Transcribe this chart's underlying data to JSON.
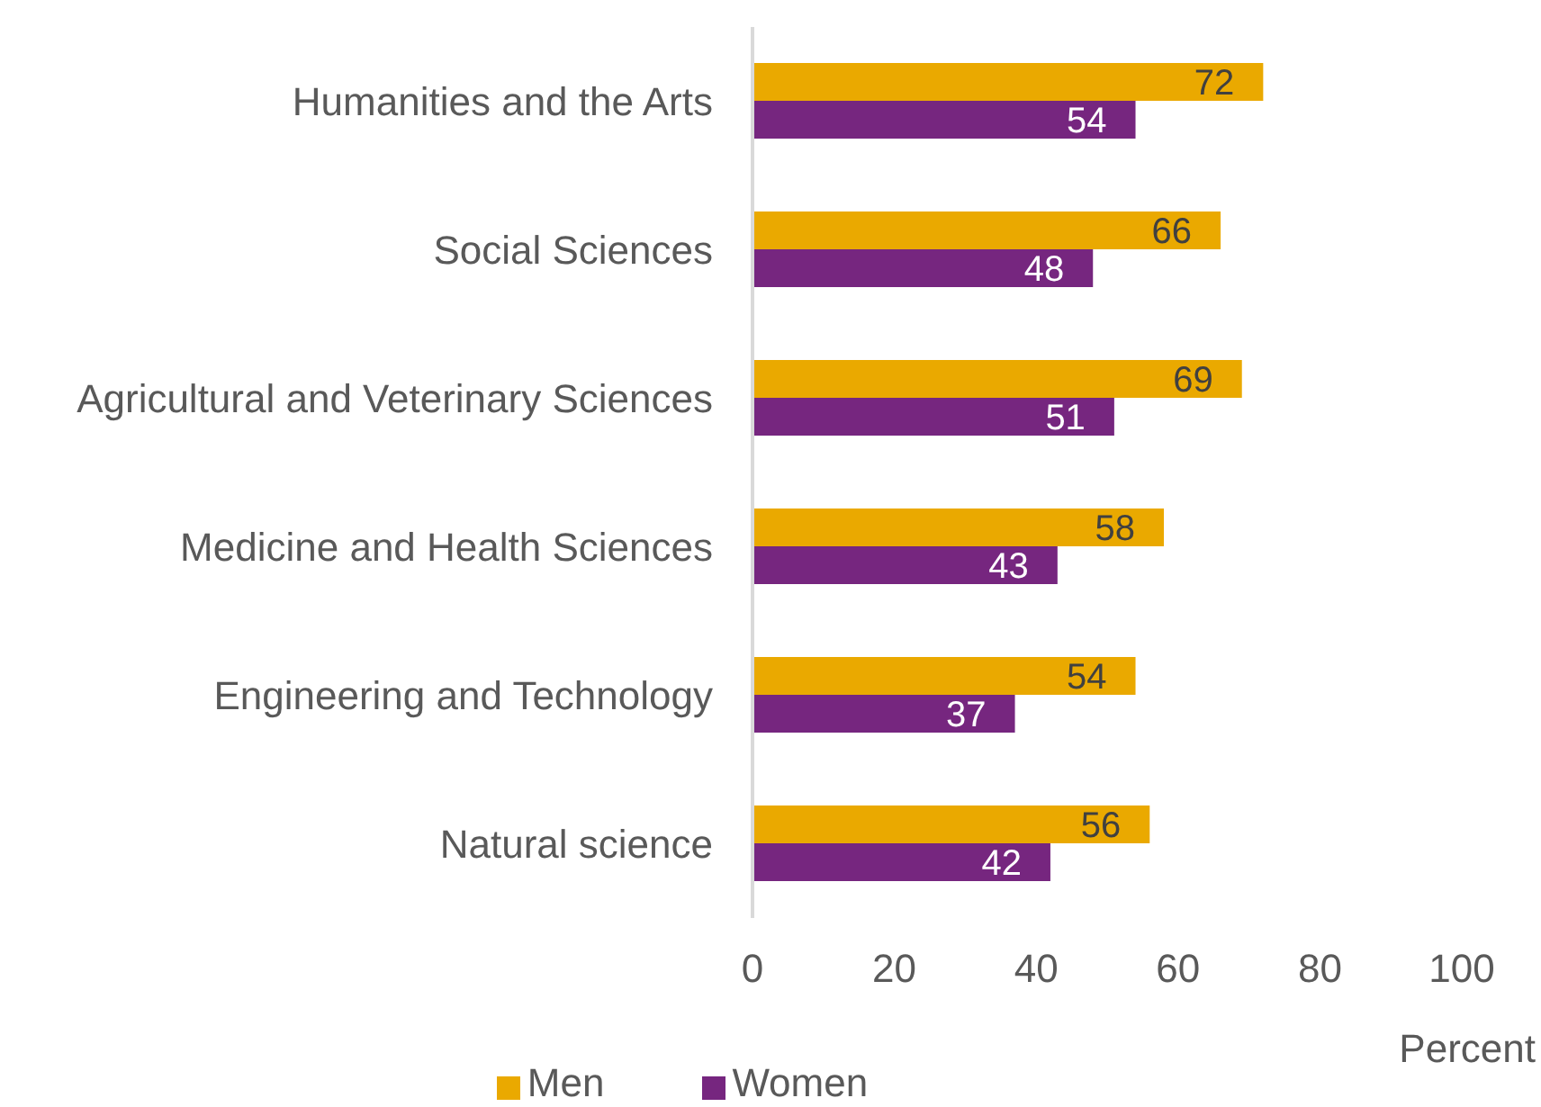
{
  "chart_data": {
    "type": "bar",
    "orientation": "horizontal",
    "categories": [
      "Humanities and the Arts",
      "Social Sciences",
      "Agricultural and Veterinary Sciences",
      "Medicine and Health Sciences",
      "Engineering and Technology",
      "Natural science"
    ],
    "series": [
      {
        "name": "Men",
        "color": "#eaa900",
        "values": [
          72,
          66,
          69,
          58,
          54,
          56
        ]
      },
      {
        "name": "Women",
        "color": "#76267f",
        "values": [
          54,
          48,
          51,
          43,
          37,
          42
        ]
      }
    ],
    "xlabel": "Percent",
    "xlim": [
      0,
      100
    ],
    "xticks": [
      0,
      20,
      40,
      60,
      80,
      100
    ],
    "data_labels": true,
    "legend": "bottom"
  }
}
